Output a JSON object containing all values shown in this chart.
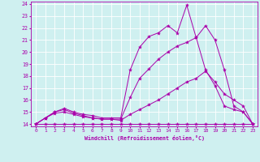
{
  "xlabel": "Windchill (Refroidissement éolien,°C)",
  "xlim": [
    -0.5,
    23.5
  ],
  "ylim": [
    13.8,
    24.2
  ],
  "yticks": [
    14,
    15,
    16,
    17,
    18,
    19,
    20,
    21,
    22,
    23,
    24
  ],
  "xticks": [
    0,
    1,
    2,
    3,
    4,
    5,
    6,
    7,
    8,
    9,
    10,
    11,
    12,
    13,
    14,
    15,
    16,
    17,
    18,
    19,
    20,
    21,
    22,
    23
  ],
  "background_color": "#cff0f0",
  "grid_color": "#ffffff",
  "line_color": "#aa00aa",
  "lines": [
    {
      "x": [
        0,
        1,
        2,
        3,
        4,
        5,
        6,
        7,
        8,
        9,
        10,
        11,
        12,
        13,
        14,
        15,
        16,
        17,
        18,
        19,
        20,
        21,
        22,
        23
      ],
      "y": [
        14,
        14,
        14,
        14,
        14,
        14,
        14,
        14,
        14,
        14,
        14,
        14,
        14,
        14,
        14,
        14,
        14,
        14,
        14,
        14,
        14,
        14,
        14,
        14
      ]
    },
    {
      "x": [
        0,
        1,
        2,
        3,
        4,
        5,
        6,
        7,
        8,
        9,
        10,
        11,
        12,
        13,
        14,
        15,
        16,
        17,
        18,
        19,
        20,
        21,
        22,
        23
      ],
      "y": [
        14,
        14.5,
        14.9,
        15.0,
        14.8,
        14.6,
        14.5,
        14.4,
        14.4,
        14.3,
        14.8,
        15.2,
        15.6,
        16.0,
        16.5,
        17.0,
        17.5,
        17.8,
        18.4,
        17.5,
        16.5,
        16.0,
        15.5,
        14.0
      ]
    },
    {
      "x": [
        0,
        1,
        2,
        3,
        4,
        5,
        6,
        7,
        8,
        9,
        10,
        11,
        12,
        13,
        14,
        15,
        16,
        17,
        18,
        19,
        20,
        21,
        22,
        23
      ],
      "y": [
        14,
        14.5,
        15.0,
        15.2,
        14.9,
        14.7,
        14.5,
        14.4,
        14.4,
        14.4,
        16.2,
        17.8,
        18.6,
        19.4,
        20.0,
        20.5,
        20.8,
        21.2,
        18.5,
        17.2,
        15.5,
        15.2,
        15.0,
        14.0
      ]
    },
    {
      "x": [
        0,
        1,
        2,
        3,
        4,
        5,
        6,
        7,
        8,
        9,
        10,
        11,
        12,
        13,
        14,
        15,
        16,
        17,
        18,
        19,
        20,
        21,
        22,
        23
      ],
      "y": [
        14,
        14.5,
        15.0,
        15.3,
        15.0,
        14.8,
        14.7,
        14.5,
        14.5,
        14.5,
        18.5,
        20.4,
        21.3,
        21.6,
        22.2,
        21.6,
        23.9,
        21.2,
        22.2,
        21.0,
        18.5,
        15.5,
        15.0,
        14.0
      ]
    }
  ]
}
